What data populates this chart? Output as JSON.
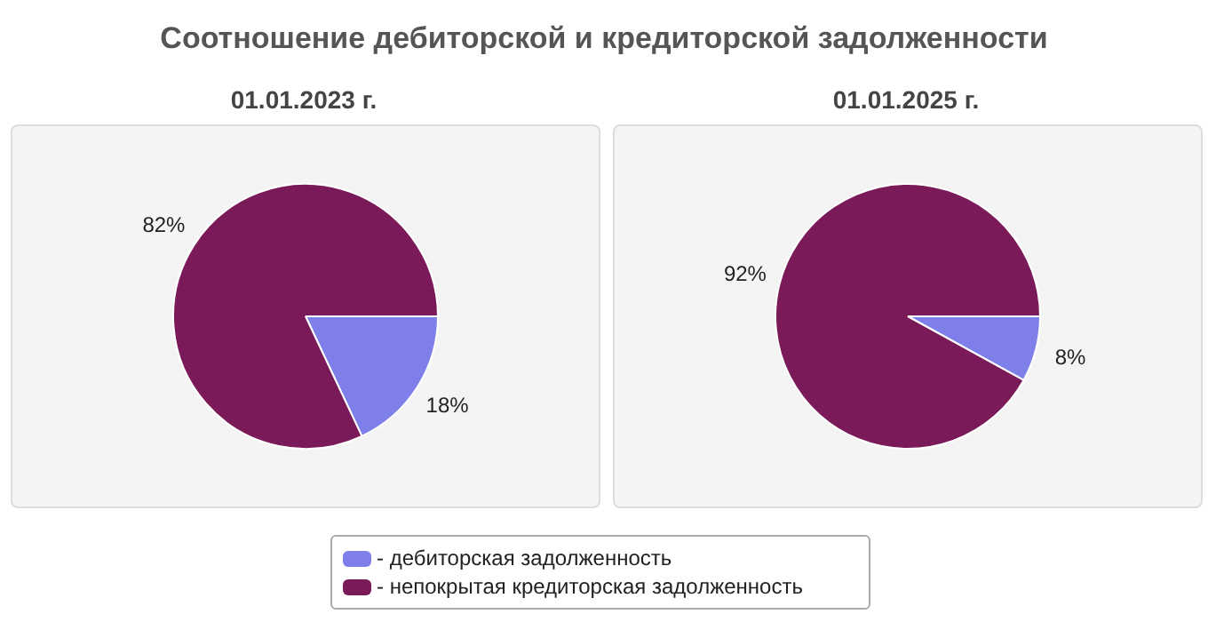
{
  "chart_data": [
    {
      "type": "pie",
      "title": "Соотношение дебиторской и кредиторской задолженности",
      "subtitle": "01.01.2023 г.",
      "categories": [
        "- дебиторская задолженность",
        "- непокрытая кредиторская задолженность"
      ],
      "values": [
        18,
        82
      ],
      "colors": [
        "#7f7fea",
        "#7a1a58"
      ],
      "value_labels": [
        "18%",
        "82%"
      ],
      "legend": "bottom"
    },
    {
      "type": "pie",
      "subtitle": "01.01.2025 г.",
      "categories": [
        null,
        null
      ],
      "values": [
        8,
        92
      ],
      "colors": [
        "#7f7fea",
        "#7a1a58"
      ],
      "value_labels": [
        "8%",
        "92%"
      ]
    }
  ]
}
